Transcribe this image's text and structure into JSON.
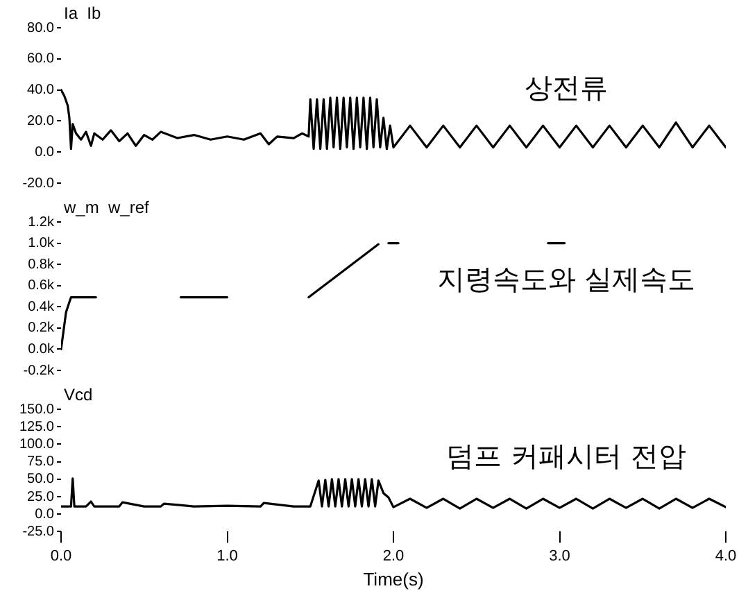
{
  "chart_data": [
    {
      "type": "line",
      "ylabel": "Ia  Ib",
      "annotations": [
        "상전류"
      ],
      "tick_labels": "y",
      "grid": false,
      "legend": false,
      "marker": "none",
      "line_style": "solid",
      "xlim": [
        0,
        4
      ],
      "ylim": [
        -20,
        80
      ],
      "yticks": [
        {
          "value": -20,
          "label": "-20.0"
        },
        {
          "value": 0,
          "label": "0.0"
        },
        {
          "value": 20,
          "label": "20.0"
        },
        {
          "value": 40,
          "label": "40.0"
        },
        {
          "value": 60,
          "label": "60.0"
        },
        {
          "value": 80,
          "label": "80.0"
        }
      ],
      "series": [
        {
          "color": "#000000",
          "x": [
            0,
            0.02,
            0.04,
            0.05,
            0.06,
            0.07,
            0.09,
            0.12,
            0.15,
            0.18,
            0.2,
            0.25,
            0.3,
            0.35,
            0.4,
            0.45,
            0.5,
            0.55,
            0.6,
            0.7,
            0.8,
            0.9,
            1.0,
            1.1,
            1.2,
            1.25,
            1.3,
            1.4,
            1.45,
            1.49,
            1.5,
            1.52,
            1.54,
            1.56,
            1.58,
            1.6,
            1.62,
            1.64,
            1.66,
            1.68,
            1.7,
            1.72,
            1.74,
            1.76,
            1.78,
            1.8,
            1.82,
            1.84,
            1.86,
            1.88,
            1.9,
            1.92,
            1.94,
            1.96,
            1.98,
            2.0,
            2.1,
            2.2,
            2.3,
            2.4,
            2.5,
            2.6,
            2.7,
            2.8,
            2.9,
            3.0,
            3.1,
            3.2,
            3.3,
            3.4,
            3.5,
            3.6,
            3.7,
            3.8,
            3.9,
            4.0
          ],
          "values": [
            40,
            36,
            30,
            22,
            2,
            18,
            12,
            8,
            13,
            4,
            12,
            8,
            14,
            7,
            12,
            4,
            11,
            8,
            13,
            9,
            11,
            8,
            10,
            8,
            12,
            5,
            10,
            9,
            12,
            10,
            34,
            2,
            34,
            2,
            34,
            2,
            35,
            3,
            35,
            2,
            35,
            3,
            35,
            2,
            35,
            3,
            35,
            2,
            35,
            3,
            34,
            3,
            22,
            2,
            17,
            3,
            17,
            3,
            17,
            3,
            17,
            3,
            17,
            3,
            17,
            3,
            17,
            3,
            17,
            3,
            17,
            3,
            19,
            3,
            17,
            3
          ]
        }
      ]
    },
    {
      "type": "line",
      "ylabel": "w_m  w_ref",
      "annotations": [
        "지령속도와 실제속도"
      ],
      "tick_labels": "y",
      "grid": false,
      "legend": false,
      "marker": "none",
      "line_style": "solid",
      "xlim": [
        0,
        4
      ],
      "ylim": [
        -200,
        1200
      ],
      "yticks": [
        {
          "value": -200,
          "label": "-0.2k"
        },
        {
          "value": 0,
          "label": "0.0k"
        },
        {
          "value": 200,
          "label": "0.2k"
        },
        {
          "value": 400,
          "label": "0.4k"
        },
        {
          "value": 600,
          "label": "0.6k"
        },
        {
          "value": 800,
          "label": "0.8k"
        },
        {
          "value": 1000,
          "label": "1.0k"
        },
        {
          "value": 1200,
          "label": "1.2k"
        }
      ],
      "series": [
        {
          "color": "#000000",
          "x": [
            0,
            0.03,
            0.06,
            0.21,
            0.4,
            0.72,
            1.0,
            1.2,
            1.49,
            1.91,
            1.94,
            1.97,
            2.03,
            2.5,
            2.93,
            3.03
          ],
          "values": [
            0,
            350,
            490,
            490,
            null,
            490,
            490,
            null,
            490,
            990,
            null,
            1000,
            1000,
            null,
            1000,
            1000
          ]
        }
      ]
    },
    {
      "type": "line",
      "ylabel": "Vcd",
      "xlabel": "Time(s)",
      "annotations": [
        "덤프 커패시터 전압"
      ],
      "grid": false,
      "legend": false,
      "marker": "none",
      "line_style": "solid",
      "xlim": [
        0,
        4
      ],
      "xticks": [
        {
          "value": 0,
          "label": "0.0"
        },
        {
          "value": 1,
          "label": "1.0"
        },
        {
          "value": 2,
          "label": "2.0"
        },
        {
          "value": 3,
          "label": "3.0"
        },
        {
          "value": 4,
          "label": "4.0"
        }
      ],
      "ylim": [
        -25,
        150
      ],
      "yticks": [
        {
          "value": -25,
          "label": "-25.0"
        },
        {
          "value": 0,
          "label": "0.0"
        },
        {
          "value": 25,
          "label": "25.0"
        },
        {
          "value": 50,
          "label": "50.0"
        },
        {
          "value": 75,
          "label": "75.0"
        },
        {
          "value": 100,
          "label": "100.0"
        },
        {
          "value": 125,
          "label": "125.0"
        },
        {
          "value": 150,
          "label": "150.0"
        }
      ],
      "series": [
        {
          "color": "#000000",
          "x": [
            0,
            0.06,
            0.07,
            0.08,
            0.15,
            0.18,
            0.2,
            0.35,
            0.37,
            0.5,
            0.6,
            0.62,
            0.8,
            1.0,
            1.2,
            1.22,
            1.4,
            1.5,
            1.55,
            1.57,
            1.59,
            1.61,
            1.63,
            1.65,
            1.67,
            1.69,
            1.71,
            1.73,
            1.75,
            1.77,
            1.79,
            1.81,
            1.83,
            1.85,
            1.87,
            1.89,
            1.91,
            1.94,
            1.97,
            2.0,
            2.1,
            2.2,
            2.3,
            2.4,
            2.5,
            2.6,
            2.7,
            2.8,
            2.9,
            3.0,
            3.1,
            3.2,
            3.3,
            3.4,
            3.5,
            3.6,
            3.7,
            3.8,
            3.9,
            4.0
          ],
          "values": [
            11,
            11,
            51,
            11,
            11,
            18,
            11,
            11,
            17,
            11,
            11,
            15,
            11,
            12,
            11,
            16,
            11,
            11,
            48,
            11,
            49,
            11,
            50,
            11,
            50,
            11,
            50,
            11,
            50,
            11,
            50,
            11,
            50,
            11,
            50,
            11,
            48,
            30,
            24,
            10,
            22,
            9,
            22,
            8,
            22,
            9,
            22,
            8,
            22,
            9,
            22,
            8,
            22,
            9,
            22,
            8,
            22,
            9,
            22,
            10
          ]
        }
      ]
    }
  ]
}
